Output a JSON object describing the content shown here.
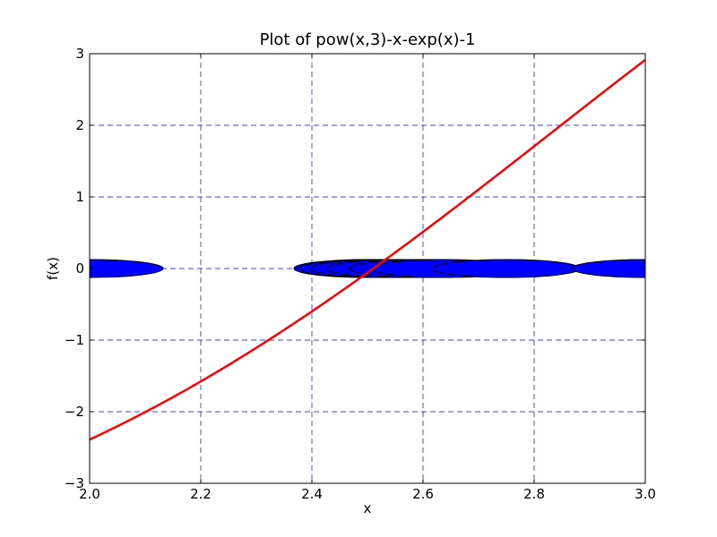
{
  "chart_data": {
    "type": "line",
    "title": "Plot of pow(x,3)-x-exp(x)-1",
    "xlabel": "x",
    "ylabel": "f(x)",
    "xlim": [
      2.0,
      3.0
    ],
    "ylim": [
      -3,
      3
    ],
    "xticks": [
      "2.0",
      "2.2",
      "2.4",
      "2.6",
      "2.8",
      "3.0"
    ],
    "yticks": [
      "−3",
      "−2",
      "−1",
      "0",
      "1",
      "2",
      "3"
    ],
    "grid": true,
    "grid_color": "#0000ff",
    "function": "pow(x,3)-x-exp(x)-1",
    "line_color": "#ff0000",
    "marker_color": "#0000ff",
    "markers": [
      {
        "x": 2.0,
        "y": 0
      },
      {
        "x": 2.5,
        "y": 0
      },
      {
        "x": 2.51,
        "y": 0
      },
      {
        "x": 2.53,
        "y": 0
      },
      {
        "x": 2.56,
        "y": 0
      },
      {
        "x": 2.6,
        "y": 0
      },
      {
        "x": 2.64,
        "y": 0
      },
      {
        "x": 2.75,
        "y": 0
      },
      {
        "x": 3.0,
        "y": 0
      }
    ]
  }
}
